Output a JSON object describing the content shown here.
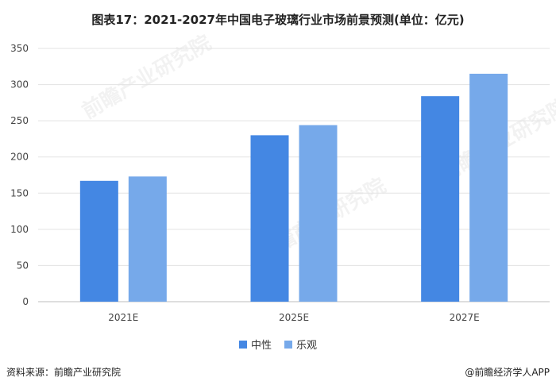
{
  "title": "图表17：2021-2027年中国电子玻璃行业市场前景预测(单位：亿元)",
  "source": "资料来源：前瞻产业研究院",
  "credit": "@前瞻经济学人APP",
  "watermark": "前瞻产业研究院",
  "colors": {
    "series_0": "#4487e3",
    "series_1": "#76a9ea",
    "grid": "#e3e3e3",
    "axis": "#bdbdbd"
  },
  "chart_data": {
    "type": "bar",
    "categories": [
      "2021E",
      "2025E",
      "2027E"
    ],
    "series": [
      {
        "name": "中性",
        "values": [
          167,
          230,
          284
        ]
      },
      {
        "name": "乐观",
        "values": [
          173,
          244,
          315
        ]
      }
    ],
    "yticks": [
      0,
      50,
      100,
      150,
      200,
      250,
      300,
      350
    ],
    "ylim": [
      0,
      350
    ],
    "grid": true,
    "legend": "bottom"
  }
}
